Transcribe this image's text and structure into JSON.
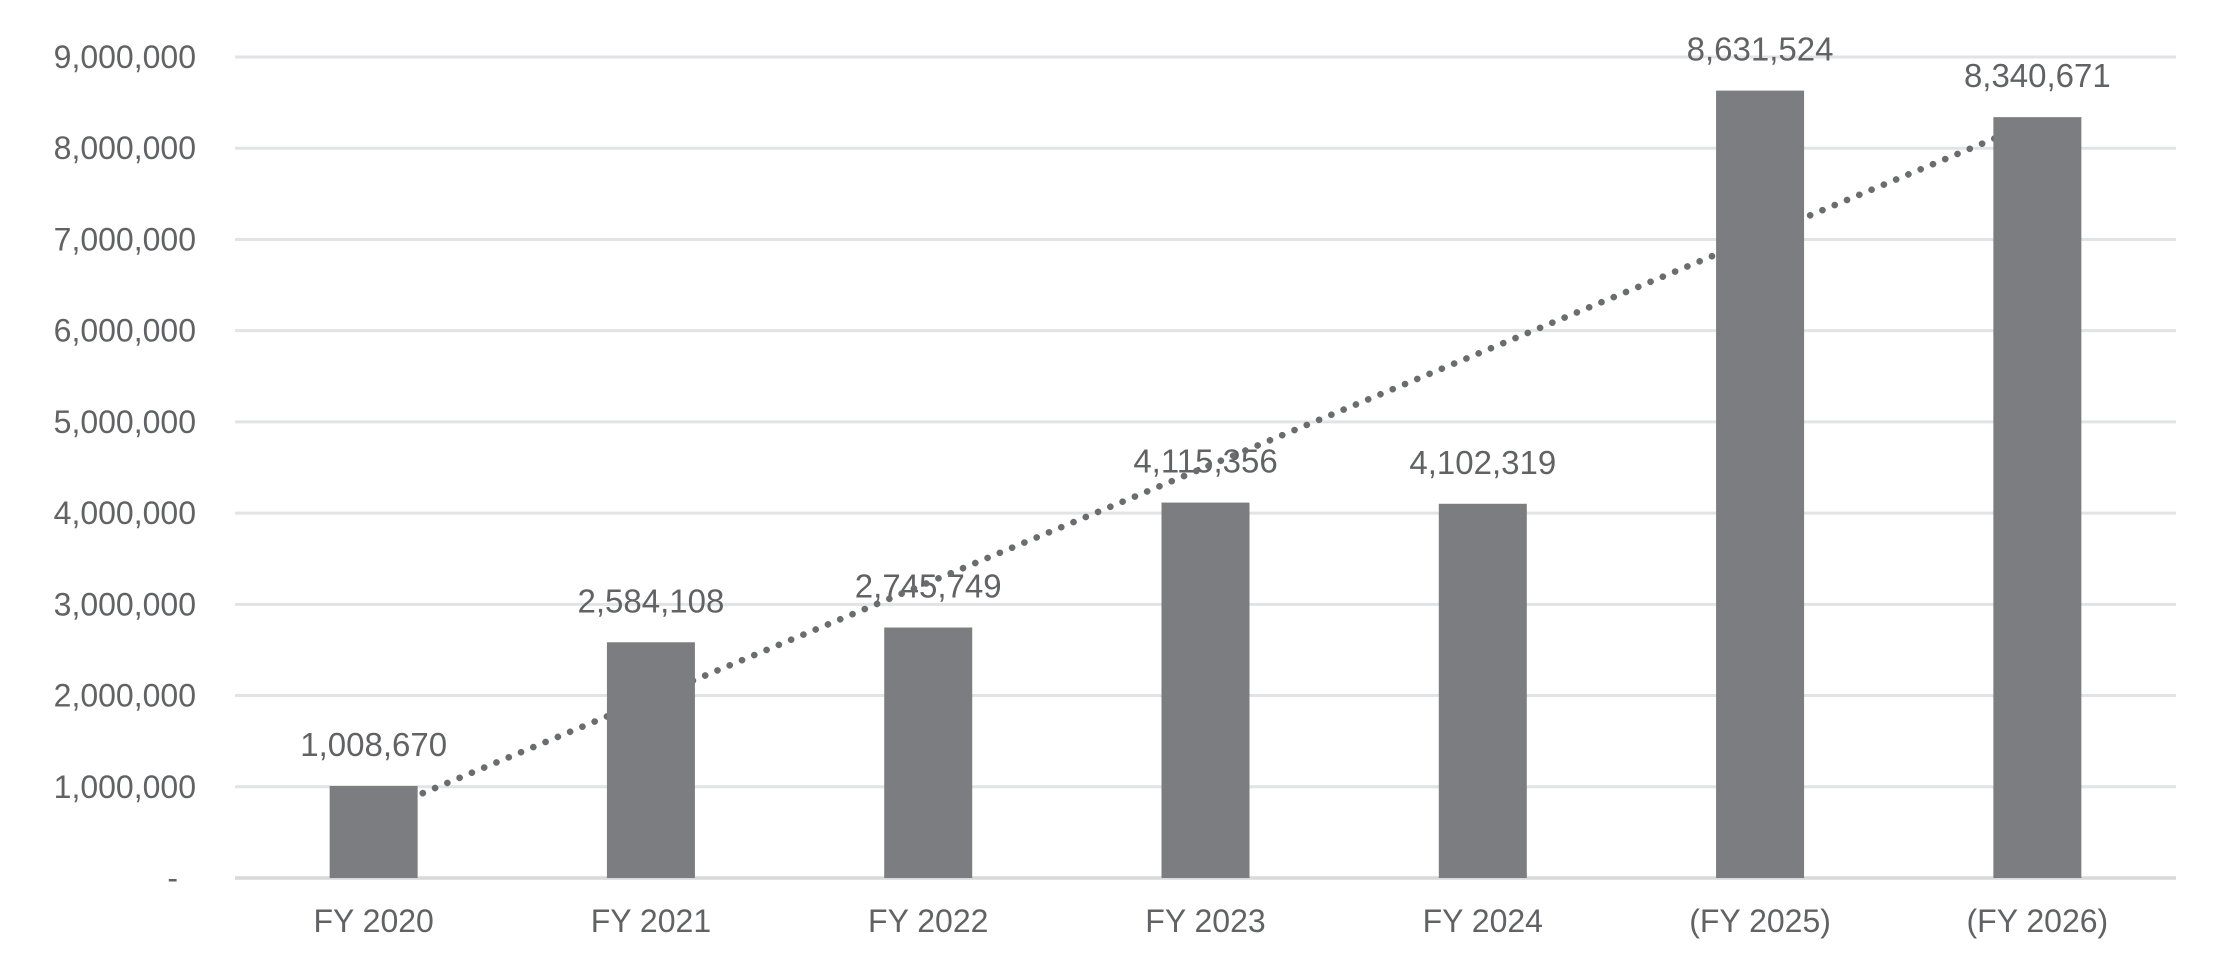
{
  "chart_data": {
    "type": "bar",
    "title": "",
    "categories": [
      "FY 2020",
      "FY 2021",
      "FY 2022",
      "FY 2023",
      "FY 2024",
      "(FY 2025)",
      "(FY 2026)"
    ],
    "values": [
      1008670,
      2584108,
      2745749,
      4115356,
      4102319,
      8631524,
      8340671
    ],
    "data_labels": [
      "1,008,670",
      "2,584,108",
      "2,745,749",
      "4,115,356",
      "4,102,319",
      "8,631,524",
      "8,340,671"
    ],
    "xlabel": "",
    "ylabel": "",
    "ylim": [
      0,
      9000000
    ],
    "grid": true,
    "legend": false,
    "y_axis": {
      "ticks": [
        {
          "label": "-",
          "value": 0
        },
        {
          "label": "1,000,000",
          "value": 1000000
        },
        {
          "label": "2,000,000",
          "value": 2000000
        },
        {
          "label": "3,000,000",
          "value": 3000000
        },
        {
          "label": "4,000,000",
          "value": 4000000
        },
        {
          "label": "5,000,000",
          "value": 5000000
        },
        {
          "label": "6,000,000",
          "value": 6000000
        },
        {
          "label": "7,000,000",
          "value": 7000000
        },
        {
          "label": "8,000,000",
          "value": 8000000
        },
        {
          "label": "9,000,000",
          "value": 9000000
        }
      ]
    },
    "trendline": {
      "type": "linear",
      "style": "dotted",
      "start_value": 706000,
      "end_value": 8302000,
      "drawn_behind_bars": true
    },
    "colors": {
      "bar": "#7b7d80",
      "trendline": "#6a6c6e",
      "gridline": "#e2e3e4",
      "axis_line": "#d7d9da",
      "text": "#616264",
      "background": "#ffffff"
    }
  }
}
